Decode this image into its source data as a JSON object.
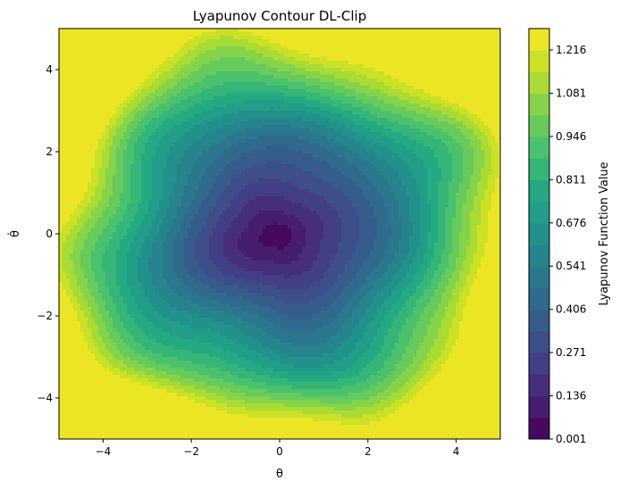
{
  "chart_data": {
    "type": "contour",
    "title": "Lyapunov Contour DL-Clip",
    "xlabel": "θ",
    "ylabel": "θ̇",
    "xlim": [
      -5,
      5
    ],
    "ylim": [
      -5,
      5
    ],
    "x_ticks": [
      -4,
      -2,
      0,
      2,
      4
    ],
    "y_ticks": [
      -4,
      -2,
      0,
      2,
      4
    ],
    "x_tick_labels": [
      "−4",
      "−2",
      "0",
      "2",
      "4"
    ],
    "y_tick_labels": [
      "−4",
      "−2",
      "0",
      "2",
      "4"
    ],
    "colorbar": {
      "label": "Lyapunov Function Value",
      "min": 0.001,
      "max": 1.283,
      "levels": 19,
      "tick_values": [
        0.001,
        0.136,
        0.271,
        0.406,
        0.541,
        0.676,
        0.811,
        0.946,
        1.081,
        1.216
      ],
      "tick_labels": [
        "0.001",
        "0.136",
        "0.271",
        "0.406",
        "0.541",
        "0.676",
        "0.811",
        "0.946",
        "1.081",
        "1.216"
      ]
    },
    "minimum_location": [
      0,
      0
    ],
    "grid": false,
    "colormap": [
      "#440154",
      "#482475",
      "#414487",
      "#355f8d",
      "#2a788e",
      "#21918c",
      "#22a884",
      "#44bf70",
      "#7ad151",
      "#bddf26",
      "#fde725"
    ]
  }
}
